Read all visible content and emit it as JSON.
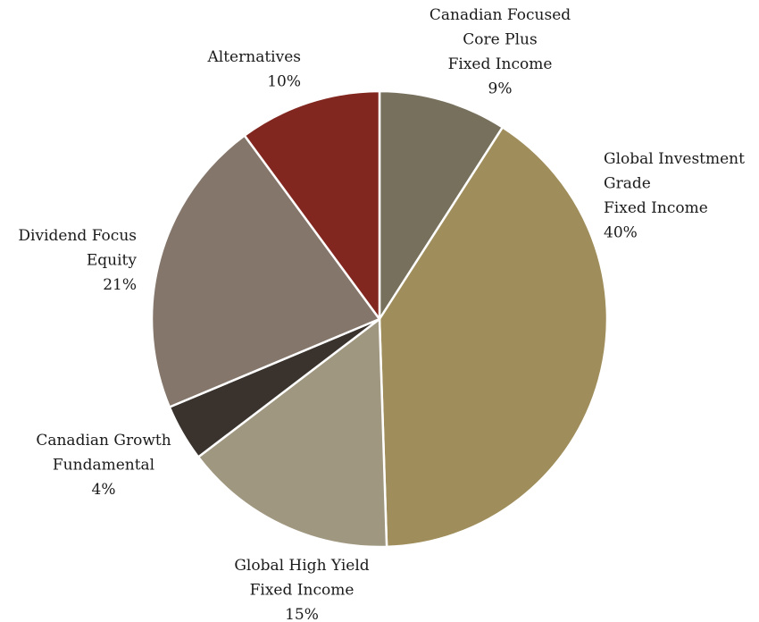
{
  "chart_data": {
    "type": "pie",
    "title": "",
    "legend": "none",
    "slices": [
      {
        "label_lines": [
          "Canadian Focused",
          "Core Plus",
          "Fixed Income"
        ],
        "value": 9,
        "value_label": "9%",
        "color": "#77705C"
      },
      {
        "label_lines": [
          "Global Investment",
          "Grade",
          "Fixed Income"
        ],
        "value": 40,
        "value_label": "40%",
        "color": "#9F8E5B"
      },
      {
        "label_lines": [
          "Global High Yield",
          "Fixed Income"
        ],
        "value": 15,
        "value_label": "15%",
        "color": "#A09780"
      },
      {
        "label_lines": [
          "Canadian Growth",
          "Fundamental"
        ],
        "value": 4,
        "value_label": "4%",
        "color": "#3A332D"
      },
      {
        "label_lines": [
          "Dividend Focus",
          "Equity"
        ],
        "value": 21,
        "value_label": "21%",
        "color": "#84766B"
      },
      {
        "label_lines": [
          "Alternatives"
        ],
        "value": 10,
        "value_label": "10%",
        "color": "#82271F"
      }
    ]
  }
}
